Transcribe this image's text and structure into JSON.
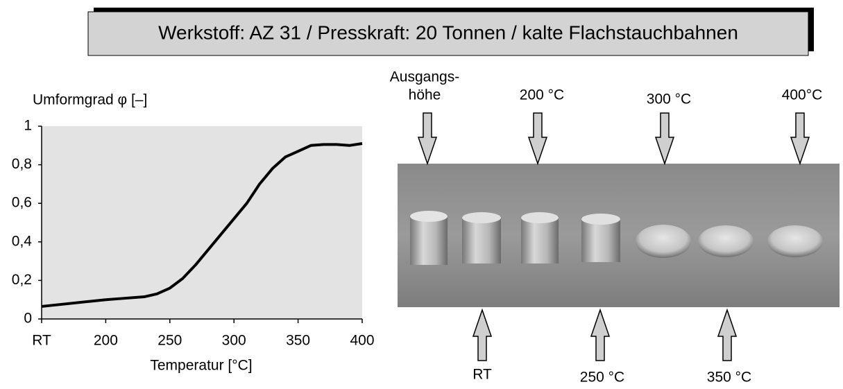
{
  "header": {
    "title": "Werkstoff: AZ 31 / Presskraft: 20 Tonnen / kalte Flachstauchbahnen"
  },
  "chart_data": {
    "type": "line",
    "ylabel": "Umformgrad φ [–]",
    "xlabel": "Temperatur [°C]",
    "x": [
      150,
      200,
      210,
      230,
      240,
      250,
      260,
      270,
      280,
      290,
      300,
      310,
      320,
      330,
      340,
      350,
      360,
      370,
      380,
      390,
      400
    ],
    "series": [
      {
        "name": "AZ 31",
        "color": "#000000",
        "values": [
          0.065,
          0.1,
          0.105,
          0.115,
          0.13,
          0.16,
          0.21,
          0.28,
          0.36,
          0.44,
          0.52,
          0.6,
          0.7,
          0.78,
          0.84,
          0.87,
          0.9,
          0.905,
          0.905,
          0.9,
          0.91
        ]
      }
    ],
    "xlim": [
      150,
      400
    ],
    "xticks": [
      {
        "value": 150,
        "label": "RT"
      },
      200,
      250,
      300,
      350,
      400
    ],
    "ylim": [
      0,
      1
    ],
    "yticks": [
      0,
      {
        "value": 0.2,
        "label": "0,2"
      },
      {
        "value": 0.4,
        "label": "0,4"
      },
      {
        "value": 0.6,
        "label": "0,6"
      },
      {
        "value": 0.8,
        "label": "0,8"
      },
      1
    ],
    "grid": false,
    "background": "#e3e3e3"
  },
  "photo": {
    "labels_top": [
      "Ausgangs-",
      "höhe",
      "200 °C",
      "300 °C",
      "400°C"
    ],
    "labels_bottom": [
      "RT",
      "250 °C",
      "350 °C"
    ]
  }
}
